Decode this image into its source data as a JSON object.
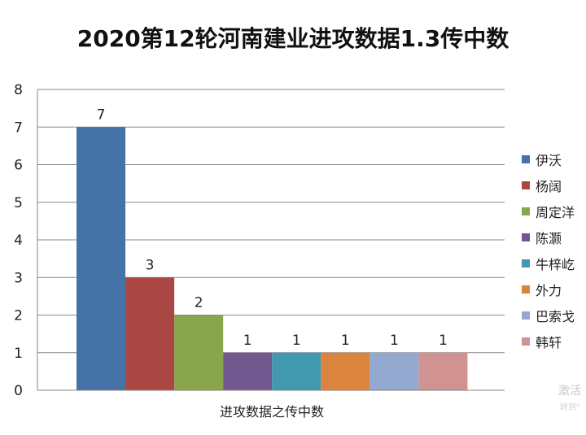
{
  "chart_data": {
    "type": "bar",
    "title": "2020第12轮河南建业进攻数据1.3传中数",
    "xlabel": "进攻数据之传中数",
    "ylabel": "",
    "ylim": [
      0,
      8
    ],
    "yticks": [
      "0",
      "1",
      "2",
      "3",
      "4",
      "5",
      "6",
      "7",
      "8"
    ],
    "grid": true,
    "legend_position": "right",
    "series": [
      {
        "name": "伊沃",
        "value": 7,
        "label": "7",
        "color": "#4572a7"
      },
      {
        "name": "杨阔",
        "value": 3,
        "label": "3",
        "color": "#aa4643"
      },
      {
        "name": "周定洋",
        "value": 2,
        "label": "2",
        "color": "#89a54e"
      },
      {
        "name": "陈灏",
        "value": 1,
        "label": "1",
        "color": "#71588f"
      },
      {
        "name": "牛梓屹",
        "value": 1,
        "label": "1",
        "color": "#4198af"
      },
      {
        "name": "外力",
        "value": 1,
        "label": "1",
        "color": "#db843d"
      },
      {
        "name": "巴索戈",
        "value": 1,
        "label": "1",
        "color": "#93a9cf"
      },
      {
        "name": "韩轩",
        "value": 1,
        "label": "1",
        "color": "#d19392"
      }
    ]
  },
  "watermark": {
    "text": "激活",
    "sub": "转到“"
  }
}
